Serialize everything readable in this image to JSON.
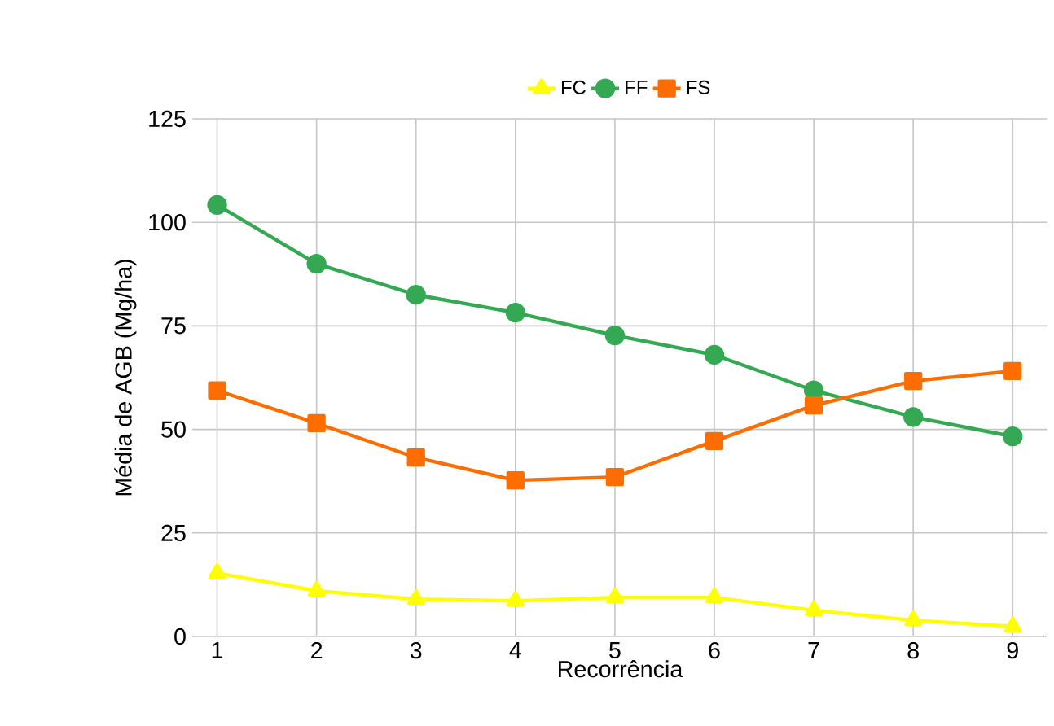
{
  "chart_data": {
    "type": "line",
    "xlabel": "Recorrência",
    "ylabel": "Média de AGB (Mg/ha)",
    "categories": [
      "1",
      "2",
      "3",
      "4",
      "5",
      "6",
      "7",
      "8",
      "9"
    ],
    "series": [
      {
        "name": "FC",
        "color": "#ffff00",
        "marker": "triangle",
        "values": [
          15.3,
          11,
          9,
          8.6,
          9.4,
          9.4,
          6.3,
          3.9,
          2.4
        ]
      },
      {
        "name": "FF",
        "color": "#34a853",
        "marker": "circle",
        "values": [
          104.2,
          90,
          82.5,
          78.2,
          72.7,
          68,
          59.4,
          53,
          48.3
        ]
      },
      {
        "name": "FS",
        "color": "#ff6d01",
        "marker": "square",
        "values": [
          59.4,
          51.5,
          43.2,
          37.7,
          38.5,
          47.2,
          55.8,
          61.7,
          64.1
        ]
      }
    ],
    "ylim": [
      0,
      125
    ],
    "yticks": [
      0,
      25,
      50,
      75,
      100,
      125
    ],
    "grid": true,
    "legend": "top"
  }
}
